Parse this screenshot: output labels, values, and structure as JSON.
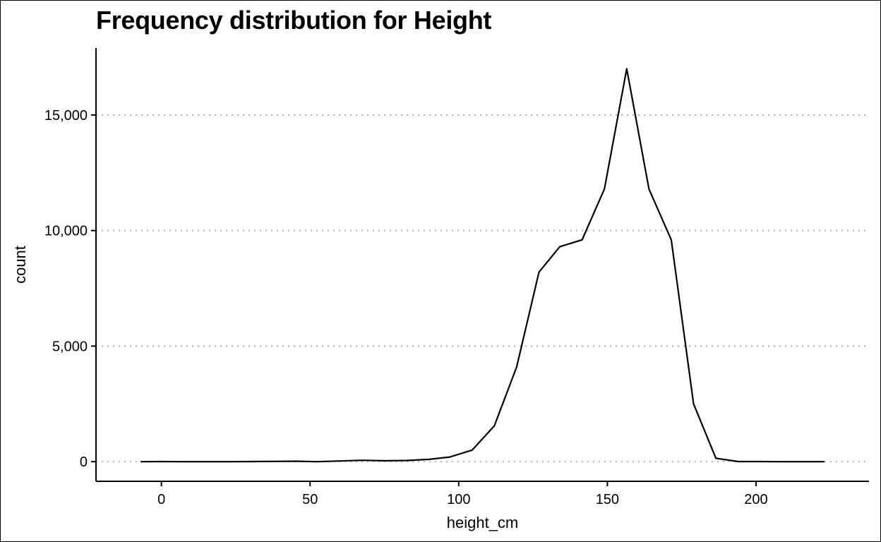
{
  "chart_data": {
    "type": "line",
    "title": "Frequency distribution for Height",
    "xlabel": "height_cm",
    "ylabel": "count",
    "xlim": [
      -22,
      238
    ],
    "ylim": [
      -850,
      17900
    ],
    "x_ticks": [
      0,
      50,
      100,
      150,
      200
    ],
    "x_tick_labels": [
      "0",
      "50",
      "100",
      "150",
      "200"
    ],
    "y_ticks": [
      0,
      5000,
      10000,
      15000
    ],
    "y_tick_labels": [
      "0",
      "5,000",
      "10,000",
      "15,000"
    ],
    "grid": "horizontal dotted",
    "legend": "none",
    "line_color": "#000000",
    "series": [
      {
        "x": [
          -7,
          0,
          7.5,
          15,
          22.5,
          30,
          37.5,
          45,
          52,
          60,
          67.5,
          75,
          82.5,
          90,
          97,
          104.5,
          112,
          119.5,
          127,
          134,
          141.5,
          149,
          156.5,
          164,
          171.5,
          179,
          186.5,
          194,
          201,
          208.5,
          216,
          223
        ],
        "y": [
          0,
          5,
          0,
          0,
          0,
          5,
          10,
          20,
          0,
          30,
          60,
          40,
          50,
          100,
          200,
          500,
          1550,
          4100,
          8200,
          9300,
          9600,
          11800,
          17000,
          11800,
          9600,
          2500,
          150,
          5,
          5,
          0,
          0,
          0
        ]
      }
    ]
  }
}
